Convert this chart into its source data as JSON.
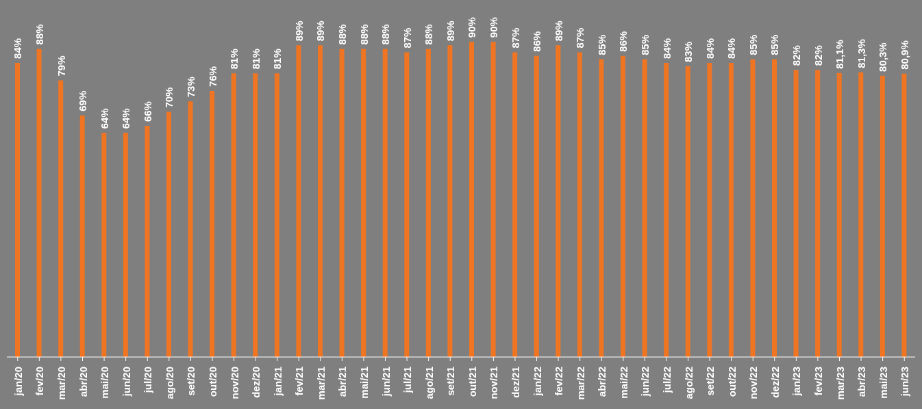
{
  "chart_data": {
    "type": "bar",
    "categories": [
      "jan/20",
      "fev/20",
      "mar/20",
      "abr/20",
      "mai/20",
      "jun/20",
      "jul/20",
      "ago/20",
      "set/20",
      "out/20",
      "nov/20",
      "dez/20",
      "jan/21",
      "fev/21",
      "mar/21",
      "abr/21",
      "mai/21",
      "jun/21",
      "jul/21",
      "ago/21",
      "set/21",
      "out/21",
      "nov/21",
      "dez/21",
      "jan/22",
      "fev/22",
      "mar/22",
      "abr/22",
      "mai/22",
      "jun/22",
      "jul/22",
      "ago/22",
      "set/22",
      "out/22",
      "nov/22",
      "dez/22",
      "jan/23",
      "fev/23",
      "mar/23",
      "abr/23",
      "mai/23",
      "jun/23"
    ],
    "values": [
      84,
      88,
      79,
      69,
      64,
      64,
      66,
      70,
      73,
      76,
      81,
      81,
      81,
      89,
      89,
      88,
      88,
      88,
      87,
      88,
      89,
      90,
      90,
      87,
      86,
      89,
      87,
      85,
      86,
      85,
      84,
      83,
      84,
      84,
      85,
      85,
      82,
      82,
      81.1,
      81.3,
      80.3,
      80.9
    ],
    "value_labels": [
      "84%",
      "88%",
      "79%",
      "69%",
      "64%",
      "64%",
      "66%",
      "70%",
      "73%",
      "76%",
      "81%",
      "81%",
      "81%",
      "89%",
      "89%",
      "88%",
      "88%",
      "88%",
      "87%",
      "88%",
      "89%",
      "90%",
      "90%",
      "87%",
      "86%",
      "89%",
      "87%",
      "85%",
      "86%",
      "85%",
      "84%",
      "83%",
      "84%",
      "84%",
      "85%",
      "85%",
      "82%",
      "82%",
      "81,1%",
      "81,3%",
      "80,3%",
      "80,9%"
    ],
    "color": "#f07522",
    "grid": false,
    "legend": false
  }
}
